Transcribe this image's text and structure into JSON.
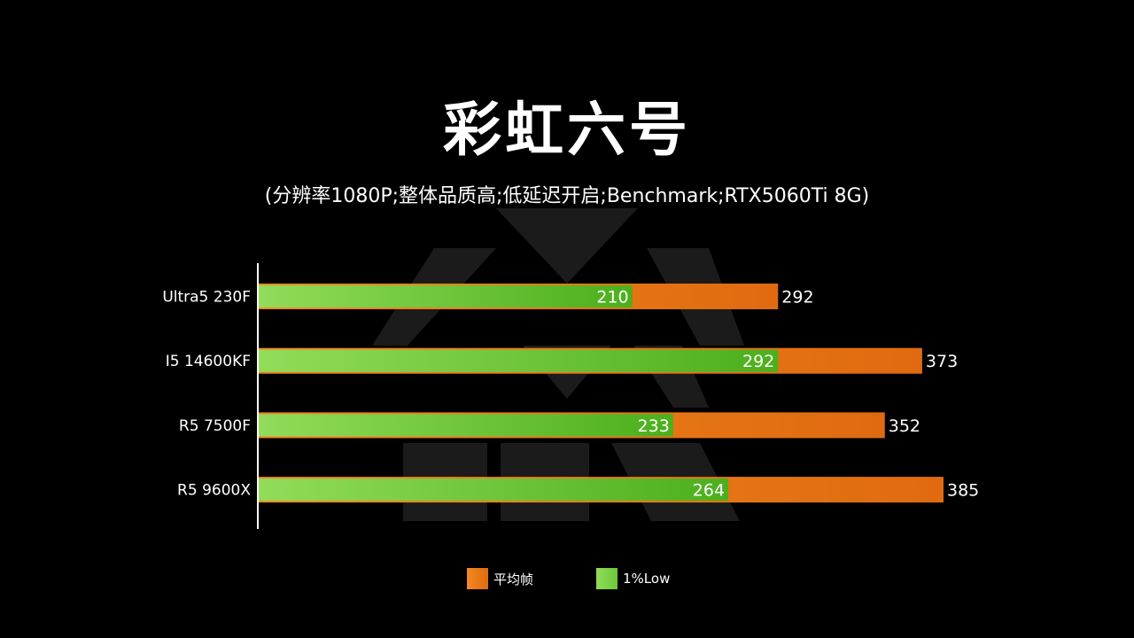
{
  "title": "彩虹六号",
  "subtitle": "(分辨率1080P;整体品质高;低延迟开启;Benchmark;RTX5060Ti 8G)",
  "colors": {
    "avg_dark": "#e06a10",
    "avg_light": "#f08a20",
    "low_light": "#92dc5a",
    "low_dark": "#4caf1c",
    "text": "#ffffff",
    "axis": "#ffffff"
  },
  "chart_data": {
    "type": "bar",
    "orientation": "horizontal",
    "categories": [
      "Ultra5 230F",
      "I5 14600KF",
      "R5 7500F",
      "R5 9600X"
    ],
    "series": [
      {
        "name": "平均帧",
        "values": [
          292,
          373,
          352,
          385
        ]
      },
      {
        "name": "1%Low",
        "values": [
          210,
          292,
          233,
          264
        ]
      }
    ],
    "xlim": [
      0,
      385
    ],
    "grid": false,
    "legend_position": "bottom"
  },
  "legend": {
    "avg_label": "平均帧",
    "low_label": "1%Low"
  }
}
